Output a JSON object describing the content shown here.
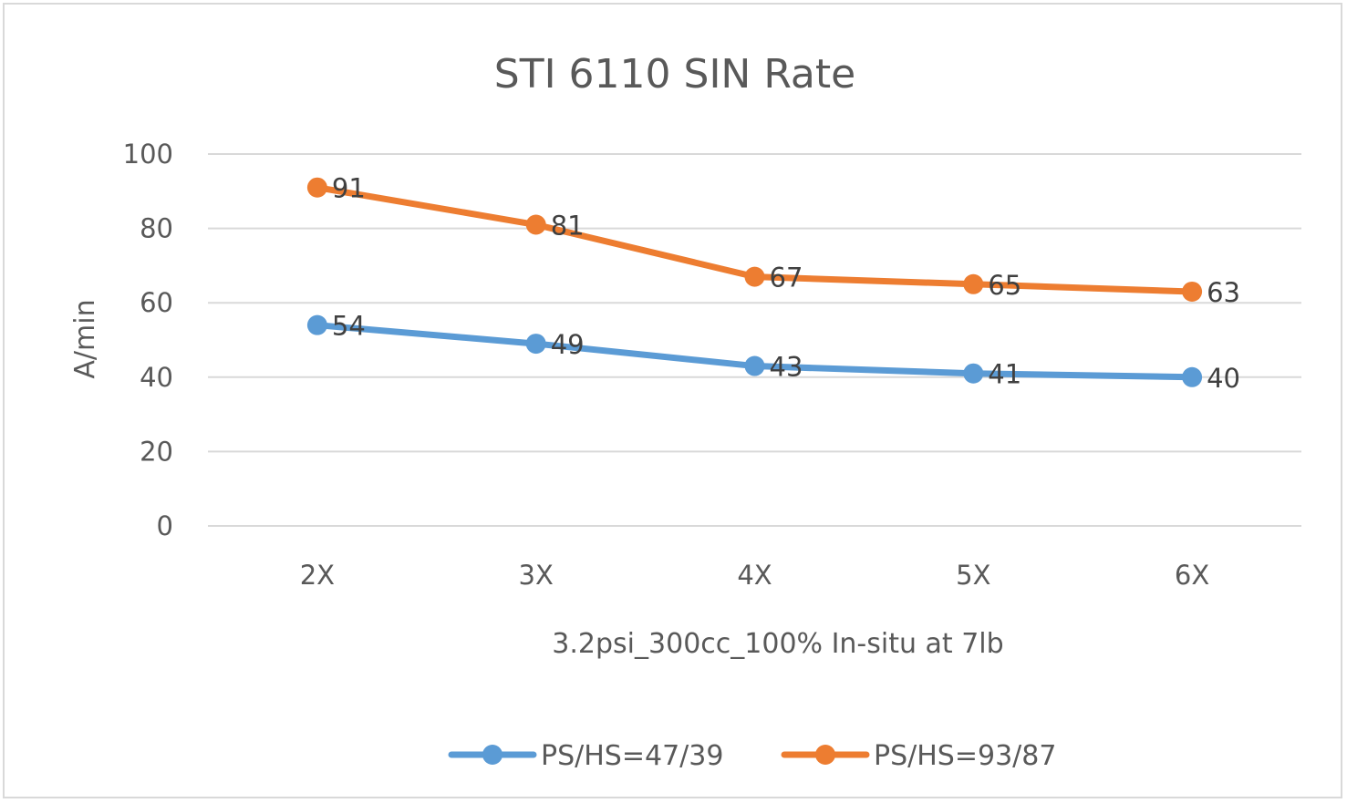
{
  "chart_data": {
    "type": "line",
    "title": "STI 6110 SIN Rate",
    "xlabel": "3.2psi_300cc_100% In-situ at 7lb",
    "ylabel": "A/min",
    "categories": [
      "2X",
      "3X",
      "4X",
      "5X",
      "6X"
    ],
    "ylim": [
      0,
      100
    ],
    "yticks": [
      0,
      20,
      40,
      60,
      80,
      100
    ],
    "ytick_labels": [
      "0",
      "20",
      "40",
      "60",
      "80",
      "100"
    ],
    "grid": true,
    "legend_position": "bottom",
    "data_labels": true,
    "series": [
      {
        "name": "PS/HS=47/39",
        "color": "#5b9bd5",
        "values": [
          54,
          49,
          43,
          41,
          40
        ]
      },
      {
        "name": "PS/HS=93/87",
        "color": "#ed7d31",
        "values": [
          91,
          81,
          67,
          65,
          63
        ]
      }
    ]
  }
}
